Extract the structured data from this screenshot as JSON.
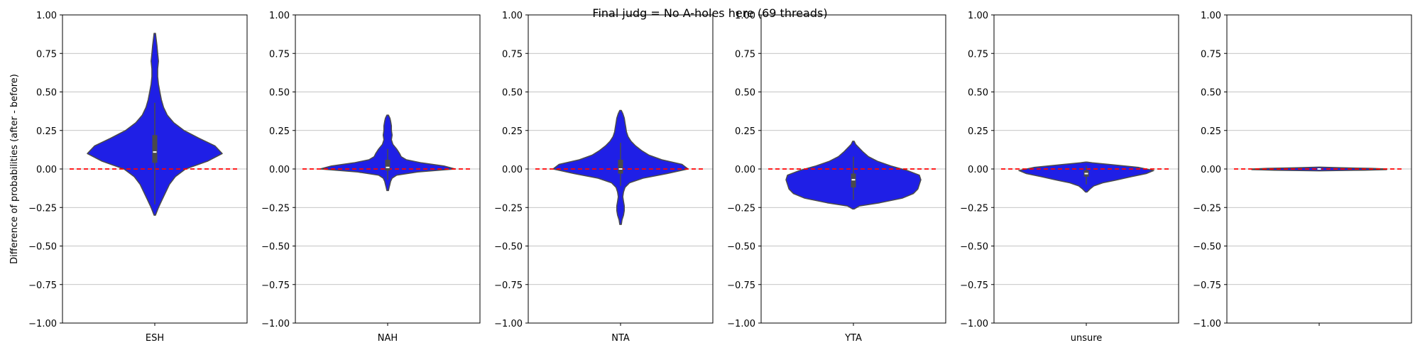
{
  "figure": {
    "suptitle": "Final judg = No A-holes here (69 threads)",
    "shared_ylabel": "Difference of probabilities (after - before)"
  },
  "colors": {
    "violin_fill": "#1f1fe6",
    "violin_edge": "#4a4a4a",
    "box": "#4a4a4a",
    "median": "#ffffff",
    "reference_line": "#ff0000",
    "grid": "#b0b0b0"
  },
  "chart_data": [
    {
      "type": "violin",
      "category": "ESH",
      "ylim": [
        -1.0,
        1.0
      ],
      "yticks": [
        "1.00",
        "0.75",
        "0.50",
        "0.25",
        "0.00",
        "−0.25",
        "−0.50",
        "−0.75",
        "−1.00"
      ],
      "ytick_values": [
        1.0,
        0.75,
        0.5,
        0.25,
        0.0,
        -0.25,
        -0.5,
        -0.75,
        -1.0
      ],
      "grid": "horizontal",
      "reference_line": 0.0,
      "ylabel": "Difference of probabilities (after - before)",
      "density": [
        [
          -0.3,
          0.01
        ],
        [
          -0.25,
          0.05
        ],
        [
          -0.2,
          0.1
        ],
        [
          -0.15,
          0.15
        ],
        [
          -0.1,
          0.2
        ],
        [
          -0.05,
          0.28
        ],
        [
          0.0,
          0.42
        ],
        [
          0.05,
          0.72
        ],
        [
          0.1,
          0.92
        ],
        [
          0.15,
          0.82
        ],
        [
          0.2,
          0.6
        ],
        [
          0.25,
          0.4
        ],
        [
          0.3,
          0.26
        ],
        [
          0.35,
          0.17
        ],
        [
          0.4,
          0.12
        ],
        [
          0.45,
          0.09
        ],
        [
          0.5,
          0.07
        ],
        [
          0.55,
          0.05
        ],
        [
          0.6,
          0.04
        ],
        [
          0.65,
          0.04
        ],
        [
          0.7,
          0.05
        ],
        [
          0.75,
          0.04
        ],
        [
          0.8,
          0.03
        ],
        [
          0.88,
          0.01
        ]
      ],
      "box": {
        "q1": 0.04,
        "median": 0.11,
        "q3": 0.22,
        "whisker_low": -0.23,
        "whisker_high": 0.43
      }
    },
    {
      "type": "violin",
      "category": "NAH",
      "ylim": [
        -1.0,
        1.0
      ],
      "yticks": [
        "1.00",
        "0.75",
        "0.50",
        "0.25",
        "0.00",
        "−0.25",
        "−0.50",
        "−0.75",
        "−1.00"
      ],
      "ytick_values": [
        1.0,
        0.75,
        0.5,
        0.25,
        0.0,
        -0.25,
        -0.5,
        -0.75,
        -1.0
      ],
      "grid": "horizontal",
      "reference_line": 0.0,
      "ylabel": "",
      "density": [
        [
          -0.14,
          0.01
        ],
        [
          -0.12,
          0.02
        ],
        [
          -0.1,
          0.03
        ],
        [
          -0.08,
          0.04
        ],
        [
          -0.06,
          0.06
        ],
        [
          -0.04,
          0.12
        ],
        [
          -0.02,
          0.4
        ],
        [
          0.0,
          0.9
        ],
        [
          0.02,
          0.75
        ],
        [
          0.04,
          0.45
        ],
        [
          0.06,
          0.25
        ],
        [
          0.08,
          0.18
        ],
        [
          0.1,
          0.16
        ],
        [
          0.13,
          0.12
        ],
        [
          0.16,
          0.07
        ],
        [
          0.19,
          0.05
        ],
        [
          0.22,
          0.06
        ],
        [
          0.25,
          0.05
        ],
        [
          0.28,
          0.05
        ],
        [
          0.31,
          0.04
        ],
        [
          0.33,
          0.03
        ],
        [
          0.35,
          0.01
        ]
      ],
      "box": {
        "q1": -0.01,
        "median": 0.01,
        "q3": 0.06,
        "whisker_low": -0.07,
        "whisker_high": 0.13
      }
    },
    {
      "type": "violin",
      "category": "NTA",
      "ylim": [
        -1.0,
        1.0
      ],
      "yticks": [
        "1.00",
        "0.75",
        "0.50",
        "0.25",
        "0.00",
        "−0.25",
        "−0.50",
        "−0.75",
        "−1.00"
      ],
      "ytick_values": [
        1.0,
        0.75,
        0.5,
        0.25,
        0.0,
        -0.25,
        -0.5,
        -0.75,
        -1.0
      ],
      "grid": "horizontal",
      "reference_line": 0.0,
      "ylabel": "",
      "density": [
        [
          -0.36,
          0.01
        ],
        [
          -0.33,
          0.02
        ],
        [
          -0.3,
          0.04
        ],
        [
          -0.27,
          0.05
        ],
        [
          -0.24,
          0.05
        ],
        [
          -0.21,
          0.04
        ],
        [
          -0.18,
          0.03
        ],
        [
          -0.15,
          0.04
        ],
        [
          -0.12,
          0.06
        ],
        [
          -0.09,
          0.12
        ],
        [
          -0.06,
          0.3
        ],
        [
          -0.03,
          0.62
        ],
        [
          0.0,
          0.9
        ],
        [
          0.03,
          0.82
        ],
        [
          0.06,
          0.55
        ],
        [
          0.09,
          0.38
        ],
        [
          0.12,
          0.28
        ],
        [
          0.15,
          0.2
        ],
        [
          0.18,
          0.14
        ],
        [
          0.21,
          0.1
        ],
        [
          0.24,
          0.08
        ],
        [
          0.27,
          0.07
        ],
        [
          0.3,
          0.06
        ],
        [
          0.33,
          0.05
        ],
        [
          0.36,
          0.03
        ],
        [
          0.38,
          0.01
        ]
      ],
      "box": {
        "q1": -0.03,
        "median": 0.0,
        "q3": 0.06,
        "whisker_low": -0.11,
        "whisker_high": 0.17
      }
    },
    {
      "type": "violin",
      "category": "YTA",
      "ylim": [
        -1.0,
        1.0
      ],
      "yticks": [
        "1.00",
        "0.75",
        "0.50",
        "0.25",
        "0.00",
        "−0.25",
        "−0.50",
        "−0.75",
        "−1.00"
      ],
      "ytick_values": [
        1.0,
        0.75,
        0.5,
        0.25,
        0.0,
        -0.25,
        -0.5,
        -0.75,
        -1.0
      ],
      "grid": "horizontal",
      "reference_line": 0.0,
      "ylabel": "",
      "density": [
        [
          -0.26,
          0.01
        ],
        [
          -0.24,
          0.08
        ],
        [
          -0.22,
          0.35
        ],
        [
          -0.19,
          0.65
        ],
        [
          -0.16,
          0.8
        ],
        [
          -0.13,
          0.86
        ],
        [
          -0.1,
          0.88
        ],
        [
          -0.07,
          0.9
        ],
        [
          -0.04,
          0.88
        ],
        [
          -0.01,
          0.72
        ],
        [
          0.02,
          0.5
        ],
        [
          0.05,
          0.32
        ],
        [
          0.08,
          0.2
        ],
        [
          0.11,
          0.13
        ],
        [
          0.14,
          0.07
        ],
        [
          0.16,
          0.03
        ],
        [
          0.18,
          0.01
        ]
      ],
      "box": {
        "q1": -0.12,
        "median": -0.07,
        "q3": -0.03,
        "whisker_low": -0.2,
        "whisker_high": 0.08
      }
    },
    {
      "type": "violin",
      "category": "unsure",
      "ylim": [
        -1.0,
        1.0
      ],
      "yticks": [
        "1.00",
        "0.75",
        "0.50",
        "0.25",
        "0.00",
        "−0.25",
        "−0.50",
        "−0.75",
        "−1.00"
      ],
      "ytick_values": [
        1.0,
        0.75,
        0.5,
        0.25,
        0.0,
        -0.25,
        -0.5,
        -0.75,
        -1.0
      ],
      "grid": "horizontal",
      "reference_line": 0.0,
      "ylabel": "",
      "density": [
        [
          -0.15,
          0.01
        ],
        [
          -0.13,
          0.05
        ],
        [
          -0.11,
          0.1
        ],
        [
          -0.09,
          0.22
        ],
        [
          -0.07,
          0.42
        ],
        [
          -0.05,
          0.6
        ],
        [
          -0.03,
          0.8
        ],
        [
          -0.01,
          0.9
        ],
        [
          0.01,
          0.7
        ],
        [
          0.03,
          0.3
        ],
        [
          0.04,
          0.08
        ],
        [
          0.045,
          0.01
        ]
      ],
      "box": {
        "q1": -0.05,
        "median": -0.03,
        "q3": -0.01,
        "whisker_low": -0.1,
        "whisker_high": 0.02
      }
    },
    {
      "type": "violin",
      "category": "",
      "ylim": [
        -1.0,
        1.0
      ],
      "yticks": [
        "1.00",
        "0.75",
        "0.50",
        "0.25",
        "0.00",
        "−0.25",
        "−0.50",
        "−0.75",
        "−1.00"
      ],
      "ytick_values": [
        1.0,
        0.75,
        0.5,
        0.25,
        0.0,
        -0.25,
        -0.5,
        -0.75,
        -1.0
      ],
      "grid": "horizontal",
      "reference_line": 0.0,
      "ylabel": "",
      "density": [
        [
          -0.012,
          0.01
        ],
        [
          -0.008,
          0.6
        ],
        [
          -0.004,
          0.9
        ],
        [
          0.0,
          0.9
        ],
        [
          0.004,
          0.7
        ],
        [
          0.008,
          0.3
        ],
        [
          0.012,
          0.01
        ]
      ],
      "box": {
        "q1": -0.003,
        "median": 0.0,
        "q3": 0.003,
        "whisker_low": -0.006,
        "whisker_high": 0.006
      }
    }
  ]
}
